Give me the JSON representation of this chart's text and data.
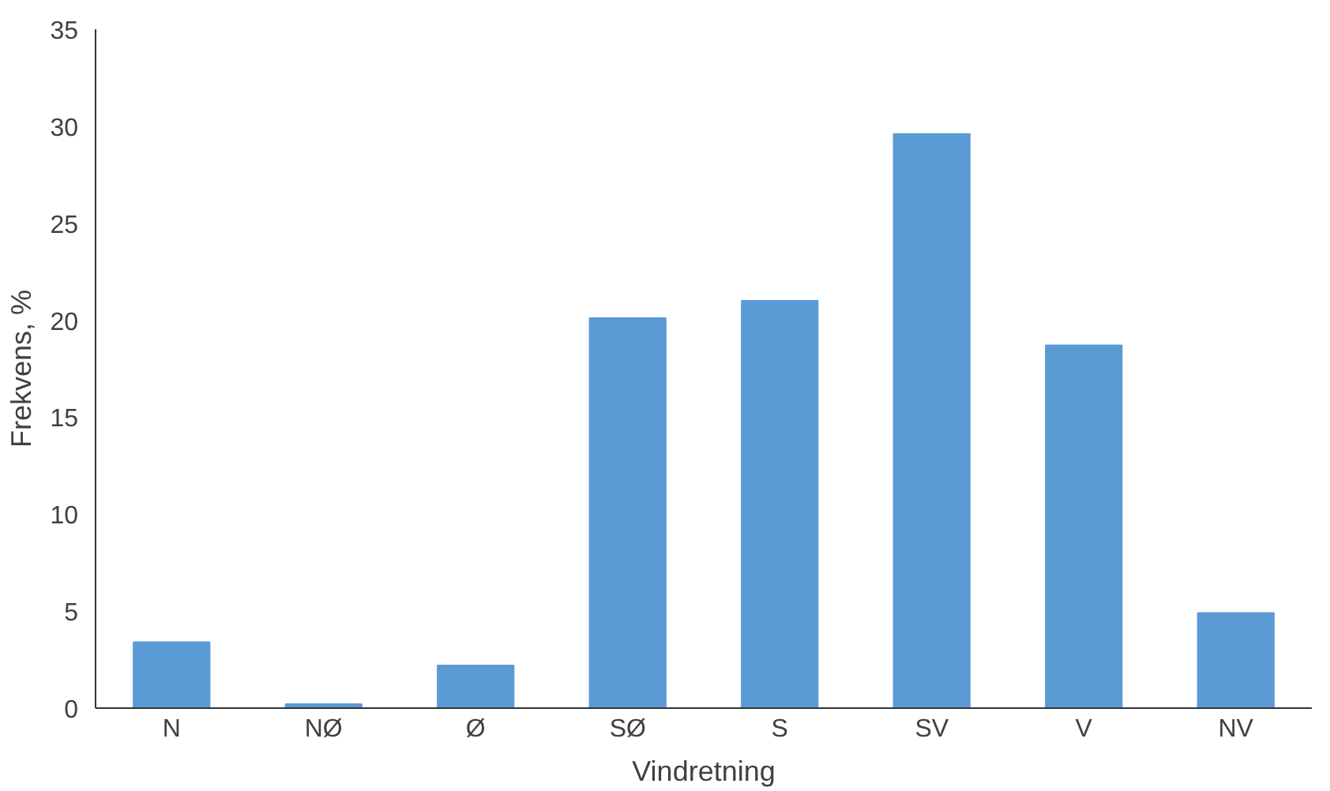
{
  "chart_data": {
    "type": "bar",
    "xlabel": "Vindretning",
    "ylabel": "Frekvens, %",
    "categories": [
      "N",
      "NØ",
      "Ø",
      "SØ",
      "S",
      "SV",
      "V",
      "NV"
    ],
    "values": [
      3.4,
      0.2,
      2.2,
      20.1,
      21.0,
      29.6,
      18.7,
      4.9
    ],
    "color": "#5b9bd5",
    "ylim": [
      0,
      35
    ],
    "yticks": [
      0,
      5,
      10,
      15,
      20,
      25,
      30,
      35
    ],
    "grid": false
  }
}
